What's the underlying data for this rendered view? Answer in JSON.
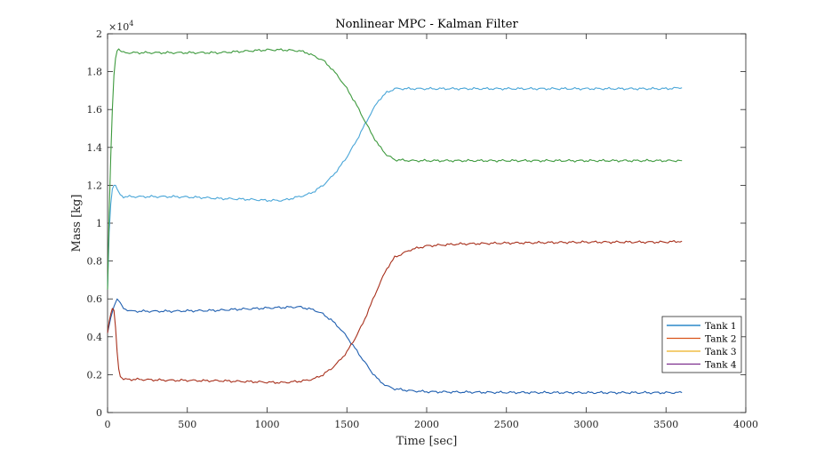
{
  "chart_data": {
    "type": "line",
    "title": "Nonlinear MPC - Kalman Filter",
    "xlabel": "Time [sec]",
    "ylabel": "Mass [kg]",
    "y_exponent_label": "×10",
    "y_exponent_power": "4",
    "xlim": [
      0,
      4000
    ],
    "ylim": [
      0,
      2
    ],
    "x_ticks": [
      0,
      500,
      1000,
      1500,
      2000,
      2500,
      3000,
      3500,
      4000
    ],
    "y_ticks": [
      0,
      0.2,
      0.4,
      0.6,
      0.8,
      1,
      1.2,
      1.4,
      1.6,
      1.8,
      2
    ],
    "x_tick_labels": [
      "0",
      "500",
      "1000",
      "1500",
      "2000",
      "2500",
      "3000",
      "3500",
      "4000"
    ],
    "y_tick_labels": [
      "0",
      "0.2",
      "0.4",
      "0.6",
      "0.8",
      "1",
      "1.2",
      "1.4",
      "1.6",
      "1.8",
      "2"
    ],
    "legend_position": "bottom-right",
    "legend": [
      {
        "name": "Tank 1",
        "color": "#0072BD"
      },
      {
        "name": "Tank 2",
        "color": "#D95319"
      },
      {
        "name": "Tank 3",
        "color": "#EDB120"
      },
      {
        "name": "Tank 4",
        "color": "#7E2F8E"
      }
    ],
    "series": [
      {
        "color": "#1f5fb0",
        "x": [
          0,
          20,
          40,
          60,
          80,
          100,
          150,
          200,
          300,
          400,
          500,
          600,
          700,
          800,
          900,
          1000,
          1100,
          1200,
          1250,
          1300,
          1350,
          1400,
          1450,
          1500,
          1550,
          1600,
          1650,
          1700,
          1750,
          1800,
          1900,
          2000,
          2200,
          2500,
          3000,
          3500,
          3600
        ],
        "y": [
          0.42,
          0.5,
          0.56,
          0.6,
          0.58,
          0.55,
          0.535,
          0.535,
          0.535,
          0.535,
          0.537,
          0.538,
          0.54,
          0.545,
          0.548,
          0.552,
          0.555,
          0.558,
          0.55,
          0.54,
          0.52,
          0.49,
          0.45,
          0.4,
          0.34,
          0.28,
          0.22,
          0.17,
          0.14,
          0.125,
          0.115,
          0.11,
          0.108,
          0.106,
          0.105,
          0.105,
          0.105
        ]
      },
      {
        "color": "#4aa6d8",
        "x": [
          0,
          10,
          20,
          30,
          40,
          50,
          60,
          80,
          100,
          150,
          200,
          300,
          400,
          500,
          600,
          700,
          800,
          900,
          1000,
          1100,
          1200,
          1250,
          1300,
          1350,
          1400,
          1450,
          1500,
          1550,
          1600,
          1650,
          1700,
          1750,
          1800,
          1900,
          2000,
          2200,
          2500,
          3000,
          3500,
          3600
        ],
        "y": [
          0.65,
          0.95,
          1.1,
          1.18,
          1.2,
          1.2,
          1.18,
          1.15,
          1.14,
          1.14,
          1.14,
          1.14,
          1.14,
          1.138,
          1.135,
          1.13,
          1.128,
          1.125,
          1.12,
          1.12,
          1.14,
          1.15,
          1.17,
          1.2,
          1.24,
          1.29,
          1.35,
          1.42,
          1.5,
          1.58,
          1.65,
          1.69,
          1.71,
          1.71,
          1.71,
          1.71,
          1.71,
          1.71,
          1.71,
          1.715
        ]
      },
      {
        "color": "#a8301c",
        "x": [
          0,
          10,
          20,
          30,
          40,
          50,
          60,
          70,
          80,
          100,
          150,
          200,
          300,
          400,
          500,
          600,
          700,
          800,
          900,
          1000,
          1100,
          1200,
          1250,
          1300,
          1350,
          1400,
          1450,
          1500,
          1550,
          1600,
          1650,
          1700,
          1750,
          1800,
          1900,
          2000,
          2200,
          2500,
          3000,
          3500,
          3600
        ],
        "y": [
          0.42,
          0.48,
          0.52,
          0.55,
          0.54,
          0.45,
          0.32,
          0.23,
          0.19,
          0.175,
          0.175,
          0.175,
          0.172,
          0.17,
          0.17,
          0.168,
          0.168,
          0.165,
          0.163,
          0.16,
          0.158,
          0.165,
          0.17,
          0.18,
          0.2,
          0.23,
          0.27,
          0.32,
          0.39,
          0.47,
          0.57,
          0.67,
          0.76,
          0.82,
          0.86,
          0.88,
          0.89,
          0.895,
          0.9,
          0.9,
          0.905
        ]
      },
      {
        "color": "#3e9a3e",
        "x": [
          0,
          10,
          20,
          30,
          40,
          50,
          60,
          70,
          80,
          100,
          150,
          200,
          300,
          400,
          500,
          600,
          700,
          800,
          900,
          1000,
          1100,
          1200,
          1250,
          1300,
          1350,
          1400,
          1450,
          1500,
          1550,
          1600,
          1650,
          1700,
          1750,
          1800,
          1900,
          2000,
          2200,
          2500,
          3000,
          3500,
          3600
        ],
        "y": [
          0.65,
          1.05,
          1.35,
          1.6,
          1.78,
          1.87,
          1.91,
          1.92,
          1.91,
          1.9,
          1.9,
          1.9,
          1.9,
          1.9,
          1.9,
          1.9,
          1.9,
          1.905,
          1.91,
          1.915,
          1.915,
          1.91,
          1.9,
          1.88,
          1.86,
          1.82,
          1.77,
          1.71,
          1.64,
          1.56,
          1.48,
          1.41,
          1.36,
          1.335,
          1.33,
          1.33,
          1.33,
          1.33,
          1.33,
          1.33,
          1.33
        ]
      }
    ]
  }
}
